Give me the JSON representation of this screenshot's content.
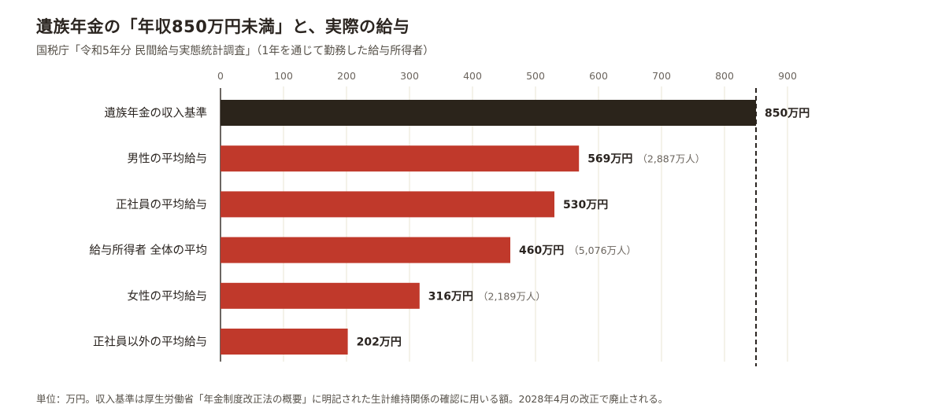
{
  "header": {
    "title": "遺族年金の「年収850万円未満」と、実際の給与",
    "subtitle": "国税庁「令和5年分 民間給与実態統計調査」（1年を通じて勤務した給与所得者）"
  },
  "footer": {
    "note": "単位：万円。収入基準は厚生労働省「年金制度改正法の概要」に明記された生計維持関係の確認に用いる額。2028年4月の改正で廃止される。"
  },
  "colors": {
    "reference_bar": "#2b241b",
    "bar": "#c0392b",
    "grid": "#e9e6d3"
  },
  "chart_data": {
    "type": "bar",
    "orientation": "horizontal",
    "xlim": [
      0,
      900
    ],
    "ticks": [
      0,
      100,
      200,
      300,
      400,
      500,
      600,
      700,
      800,
      900
    ],
    "categories": [
      "遺族年金の収入基準",
      "男性の平均給与",
      "正社員の平均給与",
      "給与所得者 全体の平均",
      "女性の平均給与",
      "正社員以外の平均給与"
    ],
    "values": [
      850,
      569,
      530,
      460,
      316,
      202
    ],
    "value_labels": [
      "850万円",
      "569万円",
      "530万円",
      "460万円",
      "316万円",
      "202万円"
    ],
    "notes": [
      "",
      "（2,887万人）",
      "",
      "（5,076万人）",
      "（2,189万人）",
      ""
    ],
    "reference_line": 850,
    "grid": true,
    "ticks_position": "top"
  }
}
